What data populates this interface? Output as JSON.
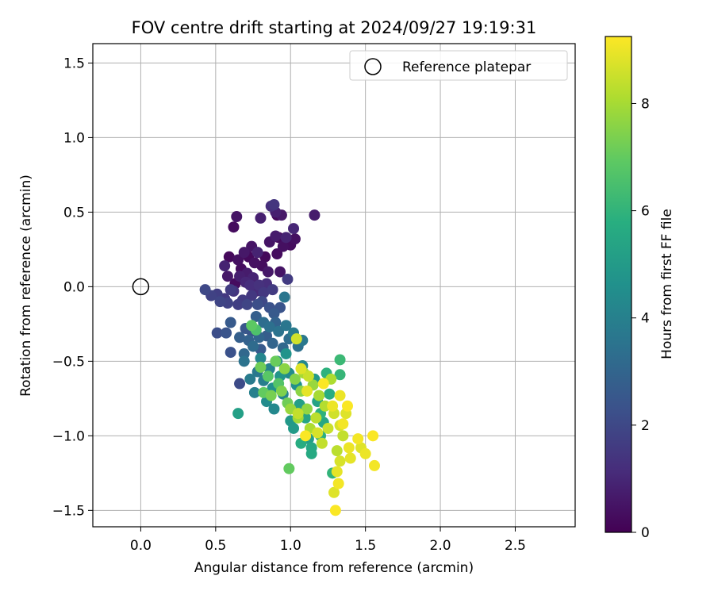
{
  "chart_data": {
    "type": "scatter",
    "title": "FOV centre drift starting at 2024/09/27 19:19:31",
    "xlabel": "Angular distance from reference (arcmin)",
    "ylabel": "Rotation from reference (arcmin)",
    "xlim": [
      -0.32,
      2.9
    ],
    "ylim": [
      -1.61,
      1.63
    ],
    "xticks": [
      0.0,
      0.5,
      1.0,
      1.5,
      2.0,
      2.5
    ],
    "xtick_labels": [
      "0.0",
      "0.5",
      "1.0",
      "1.5",
      "2.0",
      "2.5"
    ],
    "yticks": [
      -1.5,
      -1.0,
      -0.5,
      0.0,
      0.5,
      1.0,
      1.5
    ],
    "ytick_labels": [
      "−1.5",
      "−1.0",
      "−0.5",
      "0.0",
      "0.5",
      "1.0",
      "1.5"
    ],
    "grid": true,
    "legend": {
      "position": "top-right",
      "entries": [
        "Reference platepar"
      ]
    },
    "reference_point": {
      "x": 0.0,
      "y": 0.0,
      "label": "Reference platepar"
    },
    "colorbar": {
      "label": "Hours from first FF file",
      "colormap": "viridis",
      "range": [
        0,
        9.25
      ],
      "ticks": [
        0,
        2,
        4,
        6,
        8
      ],
      "tick_labels": [
        "0",
        "2",
        "4",
        "6",
        "8"
      ]
    },
    "series": [
      {
        "color_by": "hours",
        "points": [
          {
            "x": 0.59,
            "y": 0.2,
            "h": 0.2
          },
          {
            "x": 0.62,
            "y": 0.4,
            "h": 0.3
          },
          {
            "x": 0.64,
            "y": 0.47,
            "h": 0.5
          },
          {
            "x": 0.65,
            "y": 0.18,
            "h": 0.4
          },
          {
            "x": 0.67,
            "y": 0.12,
            "h": 0.3
          },
          {
            "x": 0.69,
            "y": 0.23,
            "h": 0.6
          },
          {
            "x": 0.71,
            "y": 0.09,
            "h": 0.7
          },
          {
            "x": 0.72,
            "y": 0.2,
            "h": 0.2
          },
          {
            "x": 0.74,
            "y": 0.27,
            "h": 0.5
          },
          {
            "x": 0.76,
            "y": 0.16,
            "h": 0.4
          },
          {
            "x": 0.78,
            "y": 0.23,
            "h": 0.9
          },
          {
            "x": 0.8,
            "y": 0.46,
            "h": 0.8
          },
          {
            "x": 0.81,
            "y": 0.14,
            "h": 0.3
          },
          {
            "x": 0.83,
            "y": 0.2,
            "h": 0.2
          },
          {
            "x": 0.85,
            "y": 0.1,
            "h": 0.6
          },
          {
            "x": 0.86,
            "y": 0.3,
            "h": 0.5
          },
          {
            "x": 0.87,
            "y": 0.54,
            "h": 1.2
          },
          {
            "x": 0.89,
            "y": 0.55,
            "h": 1.4
          },
          {
            "x": 0.9,
            "y": 0.5,
            "h": 0.8
          },
          {
            "x": 0.9,
            "y": 0.34,
            "h": 0.7
          },
          {
            "x": 0.91,
            "y": 0.22,
            "h": 0.3
          },
          {
            "x": 0.92,
            "y": 0.33,
            "h": 0.2
          },
          {
            "x": 0.93,
            "y": 0.1,
            "h": 0.5
          },
          {
            "x": 0.94,
            "y": 0.48,
            "h": 0.6
          },
          {
            "x": 0.95,
            "y": 0.27,
            "h": 0.4
          },
          {
            "x": 0.97,
            "y": 0.33,
            "h": 0.9
          },
          {
            "x": 0.98,
            "y": 0.05,
            "h": 1.6
          },
          {
            "x": 1.0,
            "y": 0.28,
            "h": 0.3
          },
          {
            "x": 1.02,
            "y": 0.39,
            "h": 1.0
          },
          {
            "x": 1.03,
            "y": 0.32,
            "h": 0.4
          },
          {
            "x": 1.16,
            "y": 0.48,
            "h": 0.7
          },
          {
            "x": 0.91,
            "y": 0.48,
            "h": 0.2
          },
          {
            "x": 0.56,
            "y": 0.14,
            "h": 0.9
          },
          {
            "x": 0.58,
            "y": 0.07,
            "h": 0.6
          },
          {
            "x": 0.63,
            "y": 0.02,
            "h": 0.3
          },
          {
            "x": 0.66,
            "y": 0.07,
            "h": 0.8
          },
          {
            "x": 0.7,
            "y": 0.03,
            "h": 1.0
          },
          {
            "x": 0.73,
            "y": 0.01,
            "h": 1.2
          },
          {
            "x": 0.75,
            "y": 0.06,
            "h": 0.9
          },
          {
            "x": 0.77,
            "y": -0.03,
            "h": 1.1
          },
          {
            "x": 0.79,
            "y": 0.01,
            "h": 1.3
          },
          {
            "x": 0.82,
            "y": -0.04,
            "h": 1.5
          },
          {
            "x": 0.84,
            "y": 0.02,
            "h": 1.2
          },
          {
            "x": 0.88,
            "y": -0.02,
            "h": 1.6
          },
          {
            "x": 0.43,
            "y": -0.02,
            "h": 2.0
          },
          {
            "x": 0.47,
            "y": -0.06,
            "h": 1.8
          },
          {
            "x": 0.51,
            "y": -0.05,
            "h": 1.7
          },
          {
            "x": 0.53,
            "y": -0.1,
            "h": 1.9
          },
          {
            "x": 0.56,
            "y": -0.08,
            "h": 1.5
          },
          {
            "x": 0.58,
            "y": -0.11,
            "h": 1.8
          },
          {
            "x": 0.6,
            "y": -0.02,
            "h": 1.6
          },
          {
            "x": 0.62,
            "y": -0.03,
            "h": 1.4
          },
          {
            "x": 0.65,
            "y": -0.12,
            "h": 1.7
          },
          {
            "x": 0.68,
            "y": -0.09,
            "h": 1.6
          },
          {
            "x": 0.71,
            "y": -0.12,
            "h": 1.9
          },
          {
            "x": 0.74,
            "y": -0.06,
            "h": 1.5
          },
          {
            "x": 0.78,
            "y": -0.12,
            "h": 2.2
          },
          {
            "x": 0.81,
            "y": -0.1,
            "h": 2.0
          },
          {
            "x": 0.86,
            "y": -0.14,
            "h": 2.3
          },
          {
            "x": 0.89,
            "y": -0.18,
            "h": 2.6
          },
          {
            "x": 0.93,
            "y": -0.14,
            "h": 2.4
          },
          {
            "x": 0.96,
            "y": -0.07,
            "h": 3.6
          },
          {
            "x": 0.51,
            "y": -0.31,
            "h": 2.2
          },
          {
            "x": 0.57,
            "y": -0.31,
            "h": 2.4
          },
          {
            "x": 0.6,
            "y": -0.24,
            "h": 2.6
          },
          {
            "x": 0.6,
            "y": -0.44,
            "h": 2.3
          },
          {
            "x": 0.66,
            "y": -0.65,
            "h": 2.1
          },
          {
            "x": 0.66,
            "y": -0.34,
            "h": 2.8
          },
          {
            "x": 0.69,
            "y": -0.45,
            "h": 3.1
          },
          {
            "x": 0.7,
            "y": -0.28,
            "h": 2.5
          },
          {
            "x": 0.72,
            "y": -0.36,
            "h": 2.9
          },
          {
            "x": 0.74,
            "y": -0.3,
            "h": 2.4
          },
          {
            "x": 0.75,
            "y": -0.4,
            "h": 3.2
          },
          {
            "x": 0.77,
            "y": -0.2,
            "h": 2.8
          },
          {
            "x": 0.79,
            "y": -0.34,
            "h": 3.0
          },
          {
            "x": 0.8,
            "y": -0.42,
            "h": 2.6
          },
          {
            "x": 0.82,
            "y": -0.24,
            "h": 3.3
          },
          {
            "x": 0.84,
            "y": -0.33,
            "h": 2.7
          },
          {
            "x": 0.86,
            "y": -0.27,
            "h": 3.4
          },
          {
            "x": 0.88,
            "y": -0.38,
            "h": 3.0
          },
          {
            "x": 0.9,
            "y": -0.24,
            "h": 2.9
          },
          {
            "x": 0.92,
            "y": -0.3,
            "h": 3.5
          },
          {
            "x": 0.95,
            "y": -0.41,
            "h": 3.1
          },
          {
            "x": 0.97,
            "y": -0.26,
            "h": 3.6
          },
          {
            "x": 0.99,
            "y": -0.35,
            "h": 3.3
          },
          {
            "x": 1.02,
            "y": -0.31,
            "h": 3.8
          },
          {
            "x": 1.05,
            "y": -0.4,
            "h": 3.4
          },
          {
            "x": 1.08,
            "y": -0.36,
            "h": 3.7
          },
          {
            "x": 0.69,
            "y": -0.5,
            "h": 3.5
          },
          {
            "x": 0.73,
            "y": -0.62,
            "h": 3.8
          },
          {
            "x": 0.76,
            "y": -0.71,
            "h": 4.0
          },
          {
            "x": 0.78,
            "y": -0.57,
            "h": 3.7
          },
          {
            "x": 0.8,
            "y": -0.48,
            "h": 4.2
          },
          {
            "x": 0.82,
            "y": -0.63,
            "h": 3.9
          },
          {
            "x": 0.84,
            "y": -0.77,
            "h": 4.4
          },
          {
            "x": 0.86,
            "y": -0.55,
            "h": 4.1
          },
          {
            "x": 0.88,
            "y": -0.68,
            "h": 4.6
          },
          {
            "x": 0.89,
            "y": -0.82,
            "h": 4.3
          },
          {
            "x": 0.91,
            "y": -0.5,
            "h": 4.5
          },
          {
            "x": 0.93,
            "y": -0.6,
            "h": 4.8
          },
          {
            "x": 0.95,
            "y": -0.72,
            "h": 4.2
          },
          {
            "x": 0.97,
            "y": -0.45,
            "h": 4.7
          },
          {
            "x": 0.99,
            "y": -0.58,
            "h": 4.4
          },
          {
            "x": 1.0,
            "y": -0.9,
            "h": 4.9
          },
          {
            "x": 1.02,
            "y": -0.95,
            "h": 5.0
          },
          {
            "x": 1.04,
            "y": -0.66,
            "h": 4.6
          },
          {
            "x": 1.06,
            "y": -0.79,
            "h": 5.2
          },
          {
            "x": 1.08,
            "y": -0.53,
            "h": 4.3
          },
          {
            "x": 1.1,
            "y": -0.88,
            "h": 5.4
          },
          {
            "x": 1.12,
            "y": -1.02,
            "h": 5.1
          },
          {
            "x": 1.14,
            "y": -1.12,
            "h": 5.6
          },
          {
            "x": 1.16,
            "y": -0.62,
            "h": 5.0
          },
          {
            "x": 1.18,
            "y": -0.77,
            "h": 5.3
          },
          {
            "x": 1.2,
            "y": -1.0,
            "h": 5.8
          },
          {
            "x": 1.22,
            "y": -0.91,
            "h": 5.5
          },
          {
            "x": 1.24,
            "y": -0.58,
            "h": 5.9
          },
          {
            "x": 1.26,
            "y": -0.72,
            "h": 5.7
          },
          {
            "x": 1.28,
            "y": -1.25,
            "h": 6.0
          },
          {
            "x": 1.33,
            "y": -0.49,
            "h": 6.2
          },
          {
            "x": 1.33,
            "y": -0.59,
            "h": 6.1
          },
          {
            "x": 0.65,
            "y": -0.85,
            "h": 5.2
          },
          {
            "x": 1.14,
            "y": -1.08,
            "h": 5.5
          },
          {
            "x": 1.07,
            "y": -1.05,
            "h": 5.7
          },
          {
            "x": 1.2,
            "y": -0.85,
            "h": 5.9
          },
          {
            "x": 0.74,
            "y": -0.26,
            "h": 6.9
          },
          {
            "x": 0.77,
            "y": -0.29,
            "h": 6.6
          },
          {
            "x": 0.8,
            "y": -0.54,
            "h": 7.2
          },
          {
            "x": 0.82,
            "y": -0.71,
            "h": 7.0
          },
          {
            "x": 0.85,
            "y": -0.6,
            "h": 6.8
          },
          {
            "x": 0.87,
            "y": -0.73,
            "h": 7.3
          },
          {
            "x": 0.9,
            "y": -0.5,
            "h": 7.1
          },
          {
            "x": 0.92,
            "y": -0.65,
            "h": 6.7
          },
          {
            "x": 0.94,
            "y": -0.7,
            "h": 7.4
          },
          {
            "x": 0.96,
            "y": -0.55,
            "h": 7.6
          },
          {
            "x": 0.98,
            "y": -0.78,
            "h": 7.2
          },
          {
            "x": 1.0,
            "y": -0.82,
            "h": 7.8
          },
          {
            "x": 0.99,
            "y": -1.22,
            "h": 7.0
          },
          {
            "x": 1.03,
            "y": -0.62,
            "h": 7.5
          },
          {
            "x": 1.05,
            "y": -0.88,
            "h": 7.9
          },
          {
            "x": 1.07,
            "y": -0.7,
            "h": 7.6
          },
          {
            "x": 1.09,
            "y": -0.58,
            "h": 8.0
          },
          {
            "x": 1.11,
            "y": -0.82,
            "h": 7.7
          },
          {
            "x": 1.13,
            "y": -0.95,
            "h": 8.1
          },
          {
            "x": 1.15,
            "y": -0.66,
            "h": 7.8
          },
          {
            "x": 1.17,
            "y": -0.88,
            "h": 8.3
          },
          {
            "x": 1.19,
            "y": -0.73,
            "h": 8.0
          },
          {
            "x": 1.21,
            "y": -1.05,
            "h": 8.4
          },
          {
            "x": 1.23,
            "y": -0.8,
            "h": 8.2
          },
          {
            "x": 1.25,
            "y": -0.95,
            "h": 8.5
          },
          {
            "x": 1.27,
            "y": -0.62,
            "h": 8.1
          },
          {
            "x": 1.29,
            "y": -0.85,
            "h": 8.6
          },
          {
            "x": 1.31,
            "y": -1.1,
            "h": 8.3
          },
          {
            "x": 1.33,
            "y": -0.93,
            "h": 8.7
          },
          {
            "x": 1.35,
            "y": -1.0,
            "h": 8.4
          },
          {
            "x": 1.04,
            "y": -0.35,
            "h": 8.6
          },
          {
            "x": 1.07,
            "y": -0.55,
            "h": 8.8
          },
          {
            "x": 1.11,
            "y": -0.7,
            "h": 8.9
          },
          {
            "x": 1.12,
            "y": -0.6,
            "h": 8.5
          },
          {
            "x": 1.18,
            "y": -0.98,
            "h": 8.7
          },
          {
            "x": 1.22,
            "y": -0.65,
            "h": 9.2
          },
          {
            "x": 1.28,
            "y": -0.8,
            "h": 9.0
          },
          {
            "x": 1.29,
            "y": -1.38,
            "h": 8.8
          },
          {
            "x": 1.3,
            "y": -1.5,
            "h": 9.2
          },
          {
            "x": 1.31,
            "y": -1.24,
            "h": 8.9
          },
          {
            "x": 1.32,
            "y": -1.32,
            "h": 9.1
          },
          {
            "x": 1.33,
            "y": -0.73,
            "h": 9.0
          },
          {
            "x": 1.33,
            "y": -1.17,
            "h": 8.7
          },
          {
            "x": 1.35,
            "y": -0.92,
            "h": 9.1
          },
          {
            "x": 1.37,
            "y": -0.85,
            "h": 8.8
          },
          {
            "x": 1.38,
            "y": -0.8,
            "h": 9.2
          },
          {
            "x": 1.39,
            "y": -1.08,
            "h": 9.0
          },
          {
            "x": 1.4,
            "y": -1.15,
            "h": 8.9
          },
          {
            "x": 1.45,
            "y": -1.02,
            "h": 9.1
          },
          {
            "x": 1.47,
            "y": -1.08,
            "h": 8.8
          },
          {
            "x": 1.5,
            "y": -1.12,
            "h": 9.0
          },
          {
            "x": 1.55,
            "y": -1.0,
            "h": 9.2
          },
          {
            "x": 1.56,
            "y": -1.2,
            "h": 9.1
          },
          {
            "x": 1.1,
            "y": -1.0,
            "h": 9.2
          },
          {
            "x": 1.05,
            "y": -0.85,
            "h": 8.4
          }
        ]
      }
    ]
  }
}
